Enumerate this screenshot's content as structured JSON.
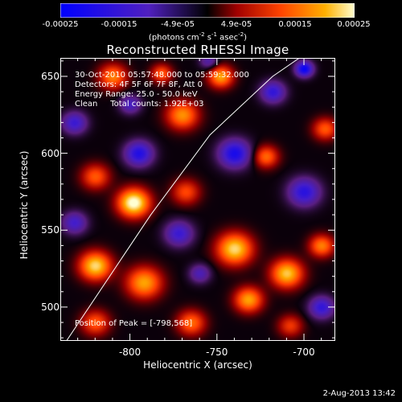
{
  "chart_data": {
    "type": "heatmap",
    "title": "Reconstructed RHESSI Image",
    "xlabel": "Heliocentric X (arcsec)",
    "ylabel": "Heliocentric Y (arcsec)",
    "xlim": [
      -840,
      -682
    ],
    "ylim": [
      478,
      662
    ],
    "xticks": [
      -800,
      -750,
      -700
    ],
    "yticks": [
      500,
      550,
      600,
      650
    ],
    "colorbar": {
      "ticks": [
        "-0.00025",
        "-0.00015",
        "-4.9e-05",
        "4.9e-05",
        "0.00015",
        "0.00025"
      ],
      "range": [
        -0.00025,
        0.00025
      ],
      "units_parts": [
        "(photons cm",
        "-2",
        " s",
        "-1",
        " asec",
        "-2",
        ")"
      ]
    },
    "info_lines": [
      "30-Oct-2010 05:57:48.000 to 05:59:32.000",
      "Detectors: 4F 5F 6F 7F 8F, Att 0",
      "Energy Range: 25.0 - 50.0 keV",
      "Clean     Total counts: 1.92E+03"
    ],
    "peak_label": "Position of Peak = [-798,568]",
    "peak": [
      -798,
      568
    ],
    "limb_line": [
      [
        -840,
        472
      ],
      [
        -788,
        560
      ],
      [
        -754,
        612
      ],
      [
        -718,
        650
      ],
      [
        -700,
        664
      ]
    ],
    "blobs": [
      [
        -798,
        568,
        1.0,
        9
      ],
      [
        -820,
        527,
        0.85,
        9
      ],
      [
        -792,
        516,
        0.7,
        10
      ],
      [
        -810,
        650,
        0.6,
        8
      ],
      [
        -770,
        625,
        0.65,
        9
      ],
      [
        -748,
        650,
        0.7,
        7
      ],
      [
        -722,
        598,
        0.55,
        7
      ],
      [
        -688,
        616,
        0.5,
        7
      ],
      [
        -768,
        575,
        0.45,
        8
      ],
      [
        -740,
        538,
        0.85,
        10
      ],
      [
        -710,
        522,
        0.8,
        9
      ],
      [
        -732,
        505,
        0.7,
        8
      ],
      [
        -690,
        540,
        0.6,
        7
      ],
      [
        -820,
        585,
        0.5,
        8
      ],
      [
        -765,
        490,
        0.55,
        8
      ],
      [
        -820,
        490,
        0.5,
        8
      ],
      [
        -708,
        488,
        0.4,
        7
      ],
      [
        -782,
        652,
        0.5,
        6
      ],
      [
        -795,
        600,
        -0.75,
        8
      ],
      [
        -740,
        600,
        -0.8,
        9
      ],
      [
        -700,
        575,
        -0.7,
        9
      ],
      [
        -718,
        640,
        -0.65,
        7
      ],
      [
        -700,
        655,
        -0.9,
        5
      ],
      [
        -772,
        548,
        -0.6,
        8
      ],
      [
        -832,
        555,
        -0.55,
        7
      ],
      [
        -832,
        620,
        -0.6,
        7
      ],
      [
        -760,
        522,
        -0.45,
        6
      ],
      [
        -690,
        500,
        -0.65,
        7
      ],
      [
        -800,
        632,
        -0.5,
        6
      ],
      [
        -755,
        660,
        -0.4,
        5
      ]
    ]
  },
  "footer": {
    "date": "2-Aug-2013 13:42"
  }
}
